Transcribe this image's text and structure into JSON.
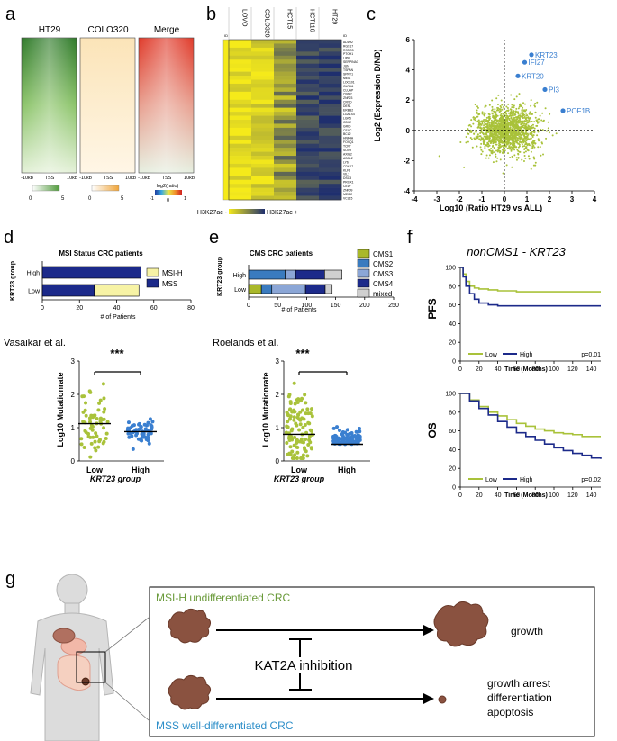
{
  "panel_letters": {
    "a": "a",
    "b": "b",
    "c": "c",
    "d": "d",
    "e": "e",
    "f": "f",
    "g": "g"
  },
  "heatmaps": {
    "titles": [
      "HT29",
      "COLO320",
      "Merge"
    ],
    "tss_axis": [
      "-10kb",
      "TSS",
      "10kb"
    ],
    "scale1": {
      "min": "0",
      "max": "5",
      "color": "#4f9a3a"
    },
    "scale2": {
      "min": "0",
      "max": "5",
      "color": "#f0a53a"
    },
    "merge_scale": {
      "label": "log2(ratio)",
      "min": "-1",
      "zero": "0",
      "max": "1"
    }
  },
  "chip_heatmap": {
    "columns": [
      "LOVO",
      "COLO320",
      "HCT15",
      "HCT116",
      "HT29"
    ],
    "gene_header": "ID",
    "genes": [
      "ADLH2",
      "RGS17",
      "RSPO3",
      "PTCH1",
      "LIPH",
      "SERPINA3",
      "JUN",
      "TSPAN",
      "SPRY1",
      "MEIS",
      "LOC101",
      "OLFM4",
      "CLUAP",
      "CNDP",
      "ZNF23",
      "CRYD",
      "DEF1",
      "ERBB2",
      "LGALS4",
      "LGR5",
      "CDX2",
      "GRID",
      "CEAC",
      "BCL2",
      "HNF4A",
      "FOXQ1",
      "TCF7",
      "SOX9",
      "AXIN2",
      "ASCL2",
      "LY6",
      "CDH17",
      "KLF5",
      "VIL1",
      "DSC3",
      "PROX1",
      "CELF",
      "ZNF09",
      "MEIS2",
      "VCL15"
    ],
    "legend_left": "H3K27ac -",
    "legend_right": "H3K27ac +",
    "colors": {
      "high": "#f5ea1a",
      "low": "#1f2f6e"
    }
  },
  "scatter": {
    "chart_data": {
      "type": "scatter",
      "xlabel": "Log10 (Ratio HT29 vs ALL)",
      "ylabel": "Log2 (Expression D/ND)",
      "xlim": [
        -4,
        4
      ],
      "ylim": [
        -4,
        6
      ],
      "xticks": [
        "-4",
        "-3",
        "-2",
        "-1",
        "0",
        "1",
        "2",
        "3",
        "4"
      ],
      "yticks": [
        "-4",
        "-2",
        "0",
        "2",
        "4",
        "6"
      ],
      "highlighted": [
        {
          "label": "KRT23",
          "x": 1.2,
          "y": 5.0
        },
        {
          "label": "IFI27",
          "x": 0.9,
          "y": 4.5
        },
        {
          "label": "KRT20",
          "x": 0.6,
          "y": 3.6
        },
        {
          "label": "PI3",
          "x": 1.8,
          "y": 2.7
        },
        {
          "label": "POF1B",
          "x": 2.6,
          "y": 1.3
        }
      ],
      "point_color": "#a9c23a",
      "highlight_color": "#3a7fd0"
    }
  },
  "msi_bar": {
    "chart_data": {
      "type": "bar",
      "title": "MSI Status CRC patients",
      "ylabel": "KRT23 group",
      "xlabel": "# of Patients",
      "categories": [
        "High",
        "Low"
      ],
      "series": [
        {
          "name": "MSS",
          "values": [
            53,
            28
          ],
          "color": "#1c2a8a"
        },
        {
          "name": "MSI-H",
          "values": [
            0,
            24
          ],
          "color": "#f7f3a5"
        }
      ],
      "xlim": [
        0,
        80
      ],
      "xticks": [
        "0",
        "20",
        "40",
        "60",
        "80"
      ]
    }
  },
  "cms_bar": {
    "chart_data": {
      "type": "bar",
      "title": "CMS CRC patients",
      "ylabel": "KRT23 group",
      "xlabel": "# of Patients",
      "categories": [
        "High",
        "Low"
      ],
      "series": [
        {
          "name": "CMS1",
          "values": [
            0,
            22
          ],
          "color": "#a9b82a"
        },
        {
          "name": "CMS2",
          "values": [
            63,
            18
          ],
          "color": "#3a7bbf"
        },
        {
          "name": "CMS3",
          "values": [
            18,
            58
          ],
          "color": "#8ba6d6"
        },
        {
          "name": "CMS4",
          "values": [
            50,
            34
          ],
          "color": "#1c2a8a"
        },
        {
          "name": "mixed",
          "values": [
            30,
            12
          ],
          "color": "#cfcfcf"
        }
      ],
      "xlim": [
        0,
        250
      ],
      "xticks": [
        "0",
        "50",
        "100",
        "150",
        "200",
        "250"
      ]
    }
  },
  "mut_vasaikar": {
    "author": "Vasaikar et al.",
    "sig": "***",
    "chart_data": {
      "type": "scatter",
      "ylabel": "Log10 Mutationrate",
      "xlabel": "KRT23 group",
      "categories": [
        "Low",
        "High"
      ],
      "ylim": [
        0,
        3
      ],
      "yticks": [
        "0",
        "1",
        "2",
        "3"
      ],
      "medians": [
        1.12,
        0.88
      ],
      "colors": [
        "#a9c23a",
        "#3a7fd0"
      ]
    }
  },
  "mut_roelands": {
    "author": "Roelands et al.",
    "sig": "***",
    "chart_data": {
      "type": "scatter",
      "ylabel": "Log10 Mutationrate",
      "xlabel": "KRT23 group",
      "categories": [
        "Low",
        "High"
      ],
      "ylim": [
        0,
        3
      ],
      "yticks": [
        "0",
        "1",
        "2",
        "3"
      ],
      "medians": [
        0.8,
        0.5
      ],
      "colors": [
        "#a9c23a",
        "#3a7fd0"
      ]
    }
  },
  "survival": {
    "title": "nonCMS1 - KRT23",
    "xlabel": "Time (Months)",
    "xticks": [
      "0",
      "20",
      "40",
      "60",
      "80",
      "100",
      "120",
      "140"
    ],
    "yticks": [
      "0",
      "20",
      "40",
      "60",
      "80",
      "100"
    ],
    "legend_low": "Low",
    "legend_high": "High",
    "pfs": {
      "label": "PFS",
      "p": "p=0.01",
      "chart_data": {
        "type": "line",
        "xlim": [
          0,
          150
        ],
        "ylim": [
          0,
          100
        ],
        "series": [
          {
            "name": "Low",
            "color": "#a9c23a",
            "x": [
              0,
              3,
              6,
              10,
              15,
              20,
              30,
              40,
              60,
              80,
              100,
              120,
              150
            ],
            "y": [
              100,
              93,
              85,
              80,
              78,
              77,
              76,
              75,
              74,
              74,
              74,
              74,
              74
            ]
          },
          {
            "name": "High",
            "color": "#1c2a8a",
            "x": [
              0,
              3,
              6,
              10,
              15,
              20,
              30,
              40,
              60,
              80,
              100,
              120,
              150
            ],
            "y": [
              100,
              90,
              80,
              72,
              66,
              62,
              60,
              59,
              59,
              59,
              59,
              59,
              59
            ]
          }
        ]
      }
    },
    "os": {
      "label": "OS",
      "p": "p=0.02",
      "chart_data": {
        "type": "line",
        "xlim": [
          0,
          150
        ],
        "ylim": [
          0,
          100
        ],
        "series": [
          {
            "name": "Low",
            "color": "#a9c23a",
            "x": [
              0,
              10,
              20,
              30,
              40,
              50,
              60,
              70,
              80,
              90,
              100,
              110,
              120,
              130,
              140,
              150
            ],
            "y": [
              100,
              93,
              86,
              80,
              76,
              72,
              68,
              65,
              62,
              60,
              58,
              57,
              56,
              54,
              54,
              54
            ]
          },
          {
            "name": "High",
            "color": "#1c2a8a",
            "x": [
              0,
              10,
              20,
              30,
              40,
              50,
              60,
              70,
              80,
              90,
              100,
              110,
              120,
              130,
              140,
              150
            ],
            "y": [
              100,
              92,
              84,
              77,
              70,
              64,
              58,
              54,
              50,
              46,
              42,
              39,
              36,
              34,
              31,
              30
            ]
          }
        ]
      }
    }
  },
  "schematic": {
    "msi_label": "MSI-H undifferentiated CRC",
    "mss_label": "MSS well-differentiated CRC",
    "growth": "growth",
    "inhibitor": "KAT2A inhibition",
    "outcomes": [
      "growth arrest",
      "differentiation",
      "apoptosis"
    ],
    "msi_color": "#6a9a3a",
    "mss_color": "#2e8fc9"
  }
}
